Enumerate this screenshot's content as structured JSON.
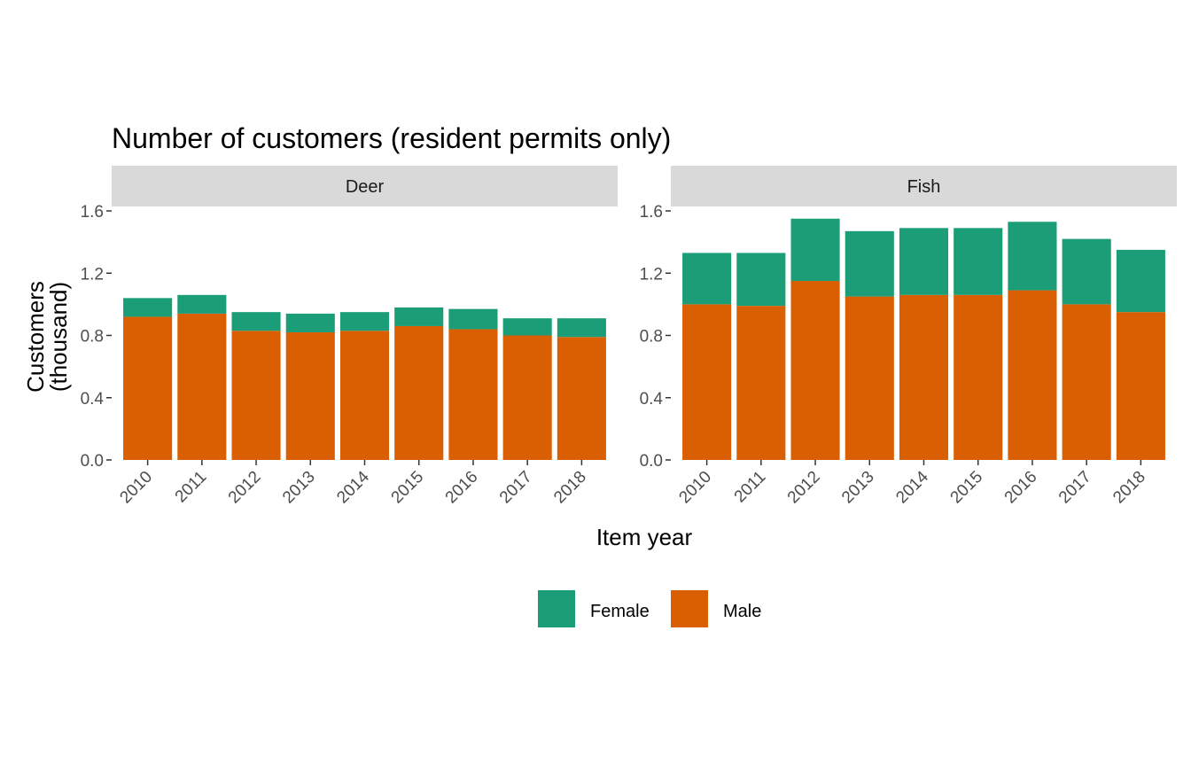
{
  "chart_data": {
    "type": "bar",
    "stacked": true,
    "title": "Number of customers (resident permits only)",
    "xlabel": "Item year",
    "ylabel_lines": [
      "Customers",
      "(thousand)"
    ],
    "ylim": [
      0,
      1.6
    ],
    "yticks": [
      "0.0",
      "0.4",
      "0.8",
      "1.2",
      "1.6"
    ],
    "categories": [
      "2010",
      "2011",
      "2012",
      "2013",
      "2014",
      "2015",
      "2016",
      "2017",
      "2018"
    ],
    "legend_position": "bottom",
    "grid": false,
    "colors": {
      "Female": "#1b9e77",
      "Male": "#d95f02",
      "strip": "#d9d9d9"
    },
    "legend": [
      "Female",
      "Male"
    ],
    "panels": [
      {
        "strip": "Deer",
        "series": [
          {
            "name": "Male",
            "values": [
              0.92,
              0.94,
              0.83,
              0.82,
              0.83,
              0.86,
              0.84,
              0.8,
              0.79
            ]
          },
          {
            "name": "Female",
            "values": [
              0.12,
              0.12,
              0.12,
              0.12,
              0.12,
              0.12,
              0.13,
              0.11,
              0.12
            ]
          }
        ]
      },
      {
        "strip": "Fish",
        "series": [
          {
            "name": "Male",
            "values": [
              1.0,
              0.99,
              1.15,
              1.05,
              1.06,
              1.06,
              1.09,
              1.0,
              0.95
            ]
          },
          {
            "name": "Female",
            "values": [
              0.33,
              0.34,
              0.4,
              0.42,
              0.43,
              0.43,
              0.44,
              0.42,
              0.4
            ]
          }
        ]
      }
    ]
  }
}
